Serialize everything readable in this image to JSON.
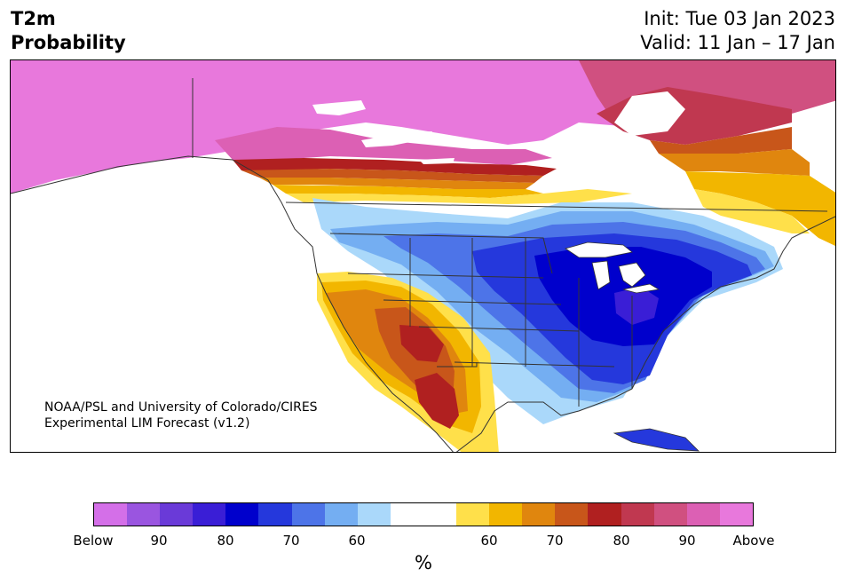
{
  "title": {
    "line1": "T2m",
    "line2": "Probability"
  },
  "dates": {
    "init": "Init: Tue 03 Jan 2023",
    "valid": "Valid: 11 Jan – 17 Jan"
  },
  "credit": {
    "line1": "NOAA/PSL and University of Colorado/CIRES",
    "line2": "Experimental LIM Forecast (v1.2)"
  },
  "colorbar": {
    "colors": [
      "#d46fe8",
      "#9a55e0",
      "#6a3ad8",
      "#3a1ed6",
      "#0000cc",
      "#2538dc",
      "#4d74e8",
      "#74aef2",
      "#aad8fa",
      "#ffffff",
      "#ffffff",
      "#ffe04a",
      "#f2b600",
      "#e0860e",
      "#c8561a",
      "#b02020",
      "#c03850",
      "#d05080",
      "#dc60b4",
      "#e878dc"
    ],
    "labels": [
      "Below",
      "90",
      "80",
      "70",
      "60",
      "60",
      "70",
      "80",
      "90",
      "Above"
    ],
    "unit": "%"
  },
  "palette": {
    "above_max": "#e878dc",
    "above_90": "#dc60b4",
    "above_85": "#d05080",
    "above_80": "#c03850",
    "above_75": "#b02020",
    "above_70": "#c8561a",
    "above_65": "#e0860e",
    "above_60": "#f2b600",
    "above_55": "#ffe04a",
    "neutral": "#ffffff",
    "below_55": "#aad8fa",
    "below_60": "#74aef2",
    "below_65": "#4d74e8",
    "below_70": "#2538dc",
    "below_75": "#0000cc",
    "below_80": "#3a1ed6",
    "boundary": "#333333"
  }
}
